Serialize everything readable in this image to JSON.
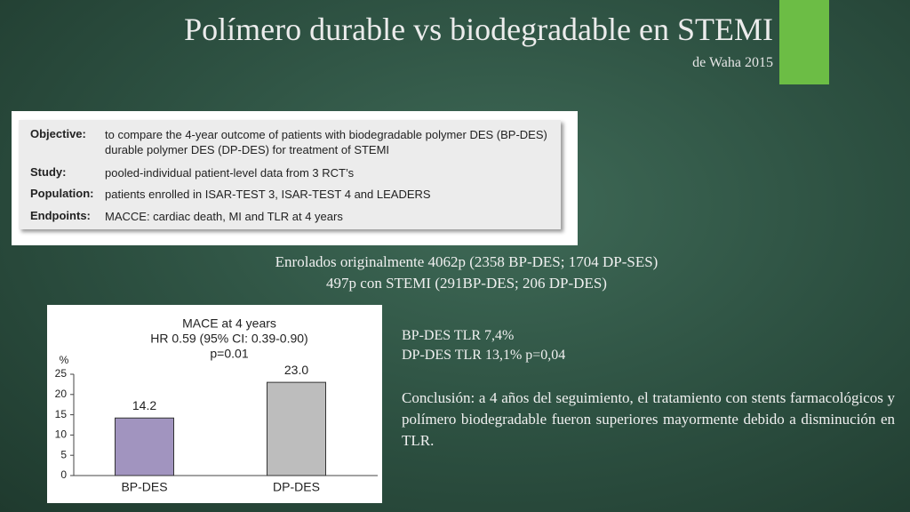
{
  "header": {
    "title": "Polímero durable vs biodegradable en STEMI",
    "subtitle": "de Waha 2015"
  },
  "study_table": {
    "rows": [
      [
        "Objective:",
        "to compare the 4-year outcome of patients with biodegradable polymer DES (BP-DES) durable polymer DES (DP-DES) for treatment of STEMI"
      ],
      [
        "Study:",
        "pooled-individual patient-level data from 3 RCT’s"
      ],
      [
        "Population:",
        "patients enrolled in ISAR-TEST 3, ISAR-TEST 4 and LEADERS"
      ],
      [
        "Endpoints:",
        "MACCE: cardiac death, MI and TLR at 4 years"
      ]
    ]
  },
  "enrollment": [
    "Enrolados originalmente 4062p (2358 BP-DES; 1704 DP-SES)",
    "497p con STEMI (291BP-DES; 206 DP-DES)"
  ],
  "chart_data": {
    "type": "bar",
    "title": "MACE at 4 years",
    "subtitle": [
      "HR 0.59 (95% CI: 0.39-0.90)",
      "p=0.01"
    ],
    "y_label": "%",
    "categories": [
      "BP-DES",
      "DP-DES"
    ],
    "values": [
      14.2,
      23.0
    ],
    "value_labels": [
      "14.2",
      "23.0"
    ],
    "colors": [
      "#a194bf",
      "#bdbdbd"
    ],
    "ylim": [
      0,
      25
    ],
    "yticks": [
      0,
      5,
      10,
      15,
      20,
      25
    ]
  },
  "results": [
    "BP-DES TLR 7,4%",
    "DP-DES TLR 13,1%  p=0,04"
  ],
  "conclusion": "Conclusión: a 4 años del seguimiento, el tratamiento con stents farmacológicos y polímero biodegradable fueron superiores mayormente debido a disminución en TLR."
}
